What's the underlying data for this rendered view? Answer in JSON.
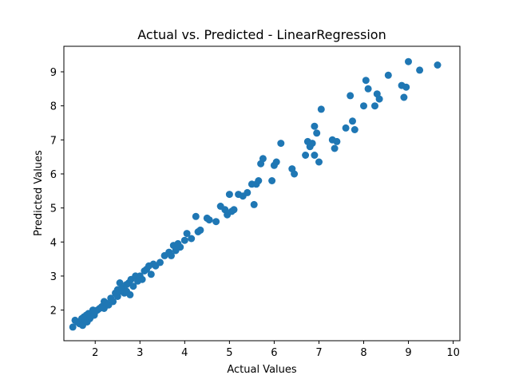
{
  "chart_data": {
    "type": "scatter",
    "title": "Actual vs. Predicted - LinearRegression",
    "xlabel": "Actual Values",
    "ylabel": "Predicted Values",
    "xlim": [
      1.3,
      10.15
    ],
    "ylim": [
      1.1,
      9.75
    ],
    "xticks": [
      2,
      3,
      4,
      5,
      6,
      7,
      8,
      9,
      10
    ],
    "yticks": [
      2,
      3,
      4,
      5,
      6,
      7,
      8,
      9
    ],
    "grid": false,
    "point_color": "#1f77b4",
    "points": [
      [
        1.5,
        1.5
      ],
      [
        1.55,
        1.7
      ],
      [
        1.6,
        1.65
      ],
      [
        1.65,
        1.6
      ],
      [
        1.7,
        1.75
      ],
      [
        1.72,
        1.55
      ],
      [
        1.75,
        1.8
      ],
      [
        1.78,
        1.7
      ],
      [
        1.8,
        1.85
      ],
      [
        1.82,
        1.65
      ],
      [
        1.85,
        1.9
      ],
      [
        1.88,
        1.75
      ],
      [
        1.9,
        1.8
      ],
      [
        1.95,
        2.0
      ],
      [
        1.98,
        1.85
      ],
      [
        2.0,
        1.95
      ],
      [
        2.05,
        2.0
      ],
      [
        2.1,
        2.05
      ],
      [
        2.15,
        2.1
      ],
      [
        2.2,
        2.05
      ],
      [
        2.2,
        2.25
      ],
      [
        2.25,
        2.2
      ],
      [
        2.3,
        2.15
      ],
      [
        2.35,
        2.35
      ],
      [
        2.4,
        2.25
      ],
      [
        2.45,
        2.5
      ],
      [
        2.5,
        2.4
      ],
      [
        2.5,
        2.6
      ],
      [
        2.55,
        2.55
      ],
      [
        2.55,
        2.8
      ],
      [
        2.6,
        2.65
      ],
      [
        2.65,
        2.5
      ],
      [
        2.7,
        2.75
      ],
      [
        2.7,
        2.55
      ],
      [
        2.75,
        2.8
      ],
      [
        2.78,
        2.45
      ],
      [
        2.8,
        2.9
      ],
      [
        2.85,
        2.7
      ],
      [
        2.9,
        3.0
      ],
      [
        2.95,
        2.85
      ],
      [
        3.0,
        3.0
      ],
      [
        3.05,
        2.9
      ],
      [
        3.1,
        3.15
      ],
      [
        3.15,
        3.2
      ],
      [
        3.2,
        3.3
      ],
      [
        3.25,
        3.05
      ],
      [
        3.3,
        3.35
      ],
      [
        3.35,
        3.3
      ],
      [
        3.45,
        3.4
      ],
      [
        3.55,
        3.6
      ],
      [
        3.65,
        3.7
      ],
      [
        3.7,
        3.6
      ],
      [
        3.75,
        3.9
      ],
      [
        3.8,
        3.75
      ],
      [
        3.85,
        3.95
      ],
      [
        3.9,
        3.85
      ],
      [
        4.0,
        4.05
      ],
      [
        4.05,
        4.25
      ],
      [
        4.15,
        4.1
      ],
      [
        4.25,
        4.75
      ],
      [
        4.3,
        4.3
      ],
      [
        4.35,
        4.35
      ],
      [
        4.5,
        4.7
      ],
      [
        4.55,
        4.65
      ],
      [
        4.7,
        4.6
      ],
      [
        4.8,
        5.05
      ],
      [
        4.9,
        4.95
      ],
      [
        4.95,
        4.8
      ],
      [
        5.0,
        5.4
      ],
      [
        5.05,
        4.9
      ],
      [
        5.1,
        4.95
      ],
      [
        5.2,
        5.4
      ],
      [
        5.3,
        5.35
      ],
      [
        5.4,
        5.45
      ],
      [
        5.5,
        5.7
      ],
      [
        5.55,
        5.1
      ],
      [
        5.6,
        5.7
      ],
      [
        5.65,
        5.8
      ],
      [
        5.7,
        6.3
      ],
      [
        5.75,
        6.45
      ],
      [
        5.95,
        5.8
      ],
      [
        6.0,
        6.25
      ],
      [
        6.05,
        6.35
      ],
      [
        6.15,
        6.9
      ],
      [
        6.4,
        6.15
      ],
      [
        6.45,
        6.0
      ],
      [
        6.7,
        6.55
      ],
      [
        6.75,
        6.95
      ],
      [
        6.8,
        6.8
      ],
      [
        6.85,
        6.9
      ],
      [
        6.9,
        7.4
      ],
      [
        6.95,
        7.2
      ],
      [
        7.0,
        6.35
      ],
      [
        7.05,
        7.9
      ],
      [
        7.3,
        7.0
      ],
      [
        7.35,
        6.75
      ],
      [
        7.4,
        6.95
      ],
      [
        7.6,
        7.35
      ],
      [
        7.7,
        8.3
      ],
      [
        7.75,
        7.55
      ],
      [
        7.8,
        7.3
      ],
      [
        8.0,
        8.0
      ],
      [
        8.05,
        8.75
      ],
      [
        8.1,
        8.5
      ],
      [
        8.25,
        8.0
      ],
      [
        8.3,
        8.35
      ],
      [
        8.35,
        8.2
      ],
      [
        8.55,
        8.9
      ],
      [
        8.85,
        8.6
      ],
      [
        8.9,
        8.25
      ],
      [
        8.95,
        8.55
      ],
      [
        9.0,
        9.3
      ],
      [
        9.25,
        9.05
      ],
      [
        9.65,
        9.2
      ],
      [
        6.9,
        6.55
      ]
    ]
  }
}
